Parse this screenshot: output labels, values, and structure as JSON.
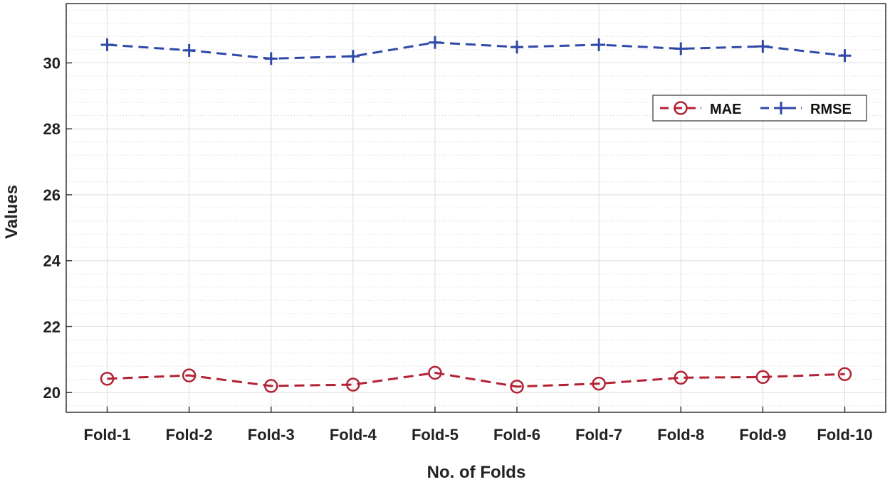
{
  "chart_data": {
    "type": "line",
    "title": "",
    "xlabel": "No. of Folds",
    "ylabel": "Values",
    "categories": [
      "Fold-1",
      "Fold-2",
      "Fold-3",
      "Fold-4",
      "Fold-5",
      "Fold-6",
      "Fold-7",
      "Fold-8",
      "Fold-9",
      "Fold-10"
    ],
    "ylim": [
      19.4,
      31.8
    ],
    "yticks": [
      20,
      22,
      24,
      26,
      28,
      30
    ],
    "y_minor_step": 0.4,
    "grid": true,
    "legend_position": "top-right",
    "series": [
      {
        "name": "MAE",
        "marker": "circle",
        "line_style": "dashed",
        "color": "#b22234",
        "values": [
          20.42,
          20.52,
          20.2,
          20.24,
          20.6,
          20.18,
          20.27,
          20.45,
          20.47,
          20.56
        ]
      },
      {
        "name": "RMSE",
        "marker": "plus",
        "line_style": "dashed",
        "color": "#2e49a8",
        "values": [
          30.55,
          30.38,
          30.13,
          30.2,
          30.62,
          30.48,
          30.55,
          30.43,
          30.5,
          30.22
        ]
      }
    ]
  }
}
